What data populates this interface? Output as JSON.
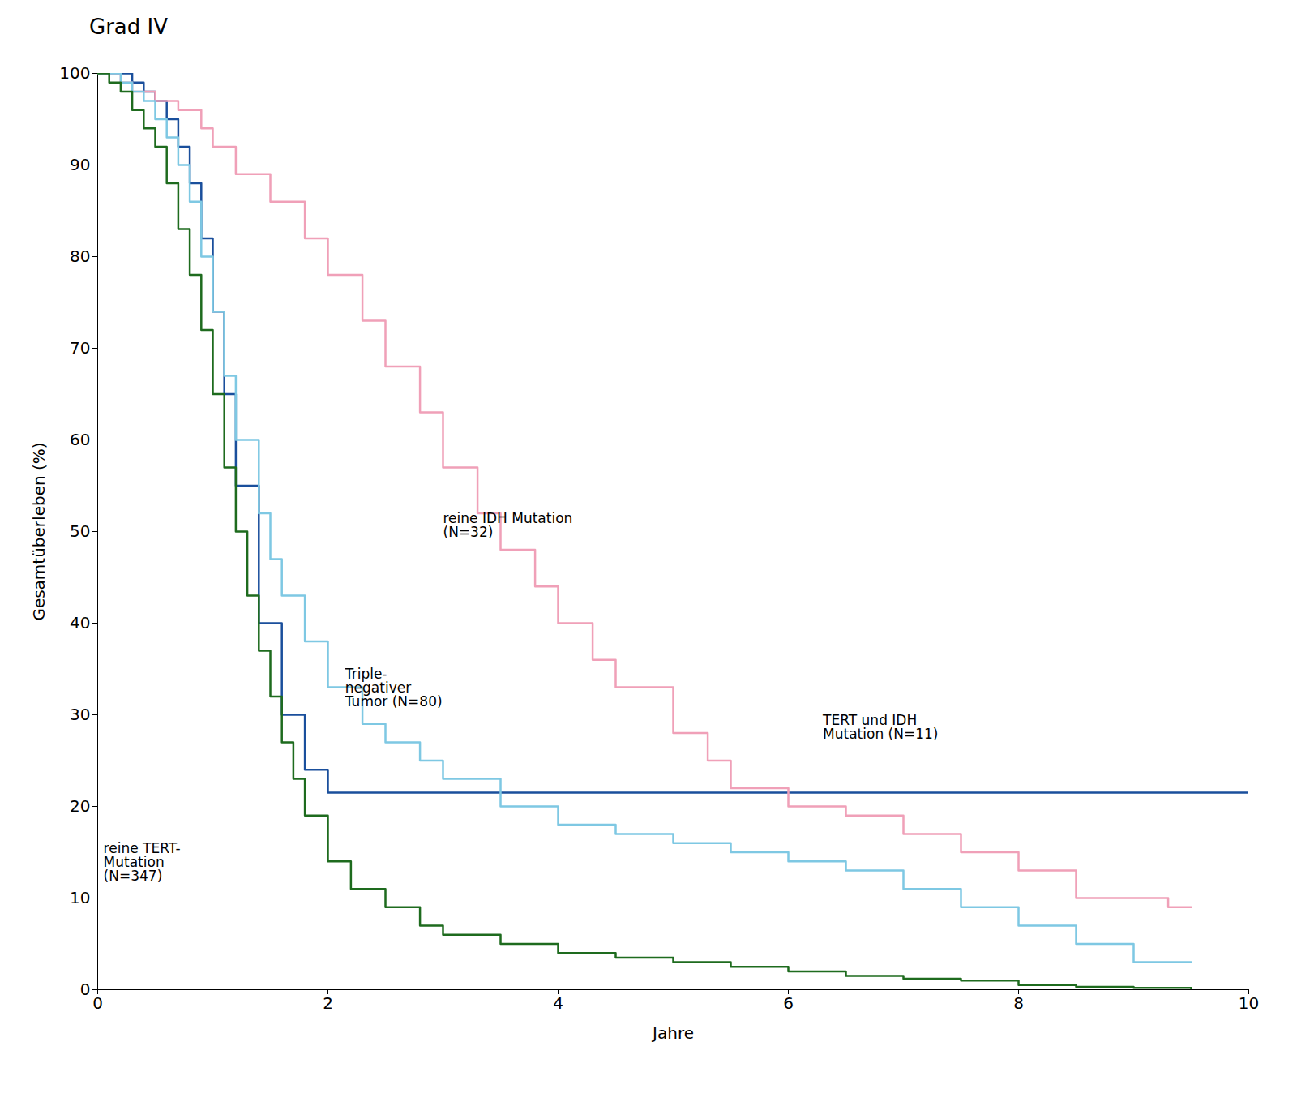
{
  "chart_data": {
    "type": "step",
    "title": "Grad IV",
    "xlabel": "Jahre",
    "ylabel": "Gesamtüberleben (%)",
    "xlim": [
      0,
      10
    ],
    "ylim": [
      0,
      100
    ],
    "xticks": [
      0,
      2,
      4,
      6,
      8,
      10
    ],
    "yticks": [
      0,
      10,
      20,
      30,
      40,
      50,
      60,
      70,
      80,
      90,
      100
    ],
    "grid": false,
    "series": [
      {
        "color": "#1a4f9c",
        "x": [
          0,
          0.1,
          0.2,
          0.3,
          0.4,
          0.5,
          0.6,
          0.7,
          0.8,
          0.9,
          1.0,
          1.1,
          1.2,
          1.4,
          1.6,
          1.8,
          2.0,
          10.0
        ],
        "values": [
          100,
          100,
          100,
          99,
          98,
          97,
          95,
          92,
          88,
          82,
          74,
          65,
          55,
          40,
          30,
          24,
          21.5,
          21.5
        ]
      },
      {
        "color": "#f0a0b8",
        "x": [
          0,
          0.1,
          0.2,
          0.3,
          0.5,
          0.7,
          0.9,
          1.0,
          1.2,
          1.5,
          1.8,
          2.0,
          2.3,
          2.5,
          2.8,
          3.0,
          3.3,
          3.5,
          3.8,
          4.0,
          4.3,
          4.5,
          5.0,
          5.3,
          5.5,
          6.0,
          6.5,
          7.0,
          7.5,
          8.0,
          8.5,
          9.0,
          9.3,
          9.5
        ],
        "values": [
          100,
          100,
          99,
          98,
          97,
          96,
          94,
          92,
          89,
          86,
          82,
          78,
          73,
          68,
          63,
          57,
          52,
          48,
          44,
          40,
          36,
          33,
          28,
          25,
          22,
          20,
          19,
          17,
          15,
          13,
          10,
          10,
          9,
          9
        ]
      },
      {
        "color": "#7ec8e3",
        "x": [
          0,
          0.1,
          0.2,
          0.3,
          0.4,
          0.5,
          0.6,
          0.7,
          0.8,
          0.9,
          1.0,
          1.1,
          1.2,
          1.4,
          1.5,
          1.6,
          1.8,
          2.0,
          2.3,
          2.5,
          2.8,
          3.0,
          3.5,
          4.0,
          4.5,
          5.0,
          5.5,
          6.0,
          6.5,
          7.0,
          7.5,
          8.0,
          8.5,
          9.0,
          9.5
        ],
        "values": [
          100,
          100,
          99,
          98,
          97,
          95,
          93,
          90,
          86,
          80,
          74,
          67,
          60,
          52,
          47,
          43,
          38,
          33,
          29,
          27,
          25,
          23,
          20,
          18,
          17,
          16,
          15,
          14,
          13,
          11,
          9,
          7,
          5,
          3,
          3
        ]
      },
      {
        "color": "#1e6b1e",
        "x": [
          0,
          0.1,
          0.2,
          0.3,
          0.4,
          0.5,
          0.6,
          0.7,
          0.8,
          0.9,
          1.0,
          1.1,
          1.2,
          1.3,
          1.4,
          1.5,
          1.6,
          1.7,
          1.8,
          2.0,
          2.2,
          2.5,
          2.8,
          3.0,
          3.5,
          4.0,
          4.5,
          5.0,
          5.5,
          6.0,
          6.5,
          7.0,
          7.5,
          8.0,
          8.5,
          9.0,
          9.5
        ],
        "values": [
          100,
          99,
          98,
          96,
          94,
          92,
          88,
          83,
          78,
          72,
          65,
          57,
          50,
          43,
          37,
          32,
          27,
          23,
          19,
          14,
          11,
          9,
          7,
          6,
          5,
          4,
          3.5,
          3,
          2.5,
          2,
          1.5,
          1.2,
          1,
          0.5,
          0.3,
          0.2,
          0.1
        ]
      }
    ],
    "annotations": [
      {
        "text": "reine IDH Mutation\n(N=32)",
        "x": 3.0,
        "y": 52,
        "color": "black"
      },
      {
        "text": "Triple-\nnegativer\nTumor (N=80)",
        "x": 2.15,
        "y": 35,
        "color": "black"
      },
      {
        "text": "TERT und IDH\nMutation (N=11)",
        "x": 6.3,
        "y": 30,
        "color": "black"
      },
      {
        "text": "reine TERT-\nMutation\n(N=347)",
        "x": 0.05,
        "y": 16,
        "color": "black"
      }
    ]
  }
}
